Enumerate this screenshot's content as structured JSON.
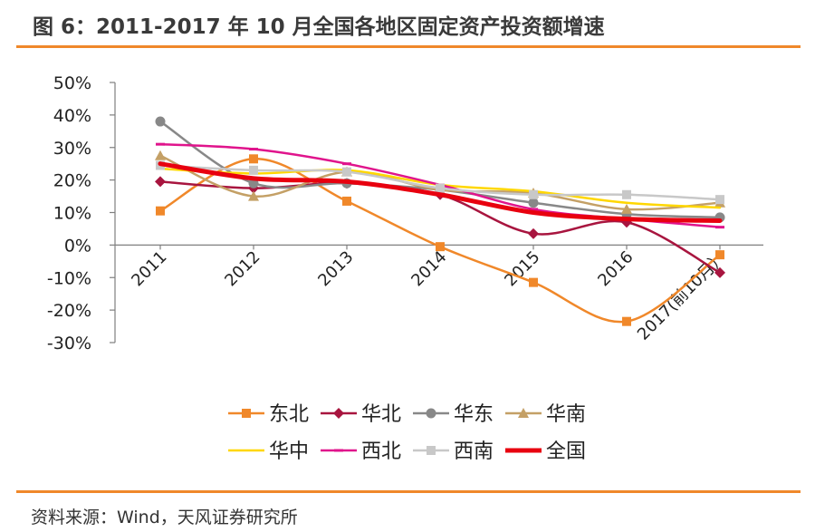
{
  "figure": {
    "title": "图 6：2011-2017 年 10 月全国各地区固定资产投资额增速",
    "source": "资料来源：Wind，天风证券研究所"
  },
  "chart_data": {
    "type": "line",
    "title": "2011-2017 年 10 月全国各地区固定资产投资额增速",
    "categories": [
      "2011",
      "2012",
      "2013",
      "2014",
      "2015",
      "2016",
      "2017(前10月）"
    ],
    "ylim": [
      -30,
      50
    ],
    "yticks": [
      50,
      40,
      30,
      20,
      10,
      0,
      -10,
      -20,
      -30
    ],
    "ytick_labels": [
      "50%",
      "40%",
      "30%",
      "20%",
      "10%",
      "0%",
      "-10%",
      "-20%",
      "-30%"
    ],
    "legend_position": "bottom",
    "series": [
      {
        "name": "东北",
        "color": "#F0882A",
        "marker": "square",
        "width": 2.5,
        "values": [
          10.5,
          26.5,
          13.5,
          -0.5,
          -11.5,
          -23.5,
          -3
        ]
      },
      {
        "name": "华北",
        "color": "#A8153F",
        "marker": "diamond",
        "width": 2.5,
        "values": [
          19.5,
          17.5,
          19,
          15.5,
          3.5,
          7,
          -8.5
        ]
      },
      {
        "name": "华东",
        "color": "#888888",
        "marker": "circle",
        "width": 2.5,
        "values": [
          38,
          19,
          19,
          17,
          13,
          9.5,
          8.5
        ]
      },
      {
        "name": "华南",
        "color": "#C4A066",
        "marker": "triangle",
        "width": 2.5,
        "values": [
          27.5,
          15,
          22.5,
          17,
          16,
          11,
          13
        ]
      },
      {
        "name": "华中",
        "color": "#FFD700",
        "marker": "none",
        "width": 2.5,
        "values": [
          23.5,
          22,
          23,
          18.5,
          16.5,
          13,
          11.5
        ]
      },
      {
        "name": "西北",
        "color": "#E0148C",
        "marker": "dash",
        "width": 2.5,
        "values": [
          31,
          29.5,
          25,
          18.5,
          11,
          8,
          5.5
        ]
      },
      {
        "name": "西南",
        "color": "#C8C8C8",
        "marker": "square",
        "width": 2.5,
        "values": [
          24.5,
          23,
          22.5,
          17.5,
          15.5,
          15.5,
          14
        ]
      },
      {
        "name": "全国",
        "color": "#E8000F",
        "marker": "none",
        "width": 5,
        "values": [
          25,
          20.5,
          19.5,
          15.5,
          10,
          8,
          7.5
        ]
      }
    ]
  }
}
